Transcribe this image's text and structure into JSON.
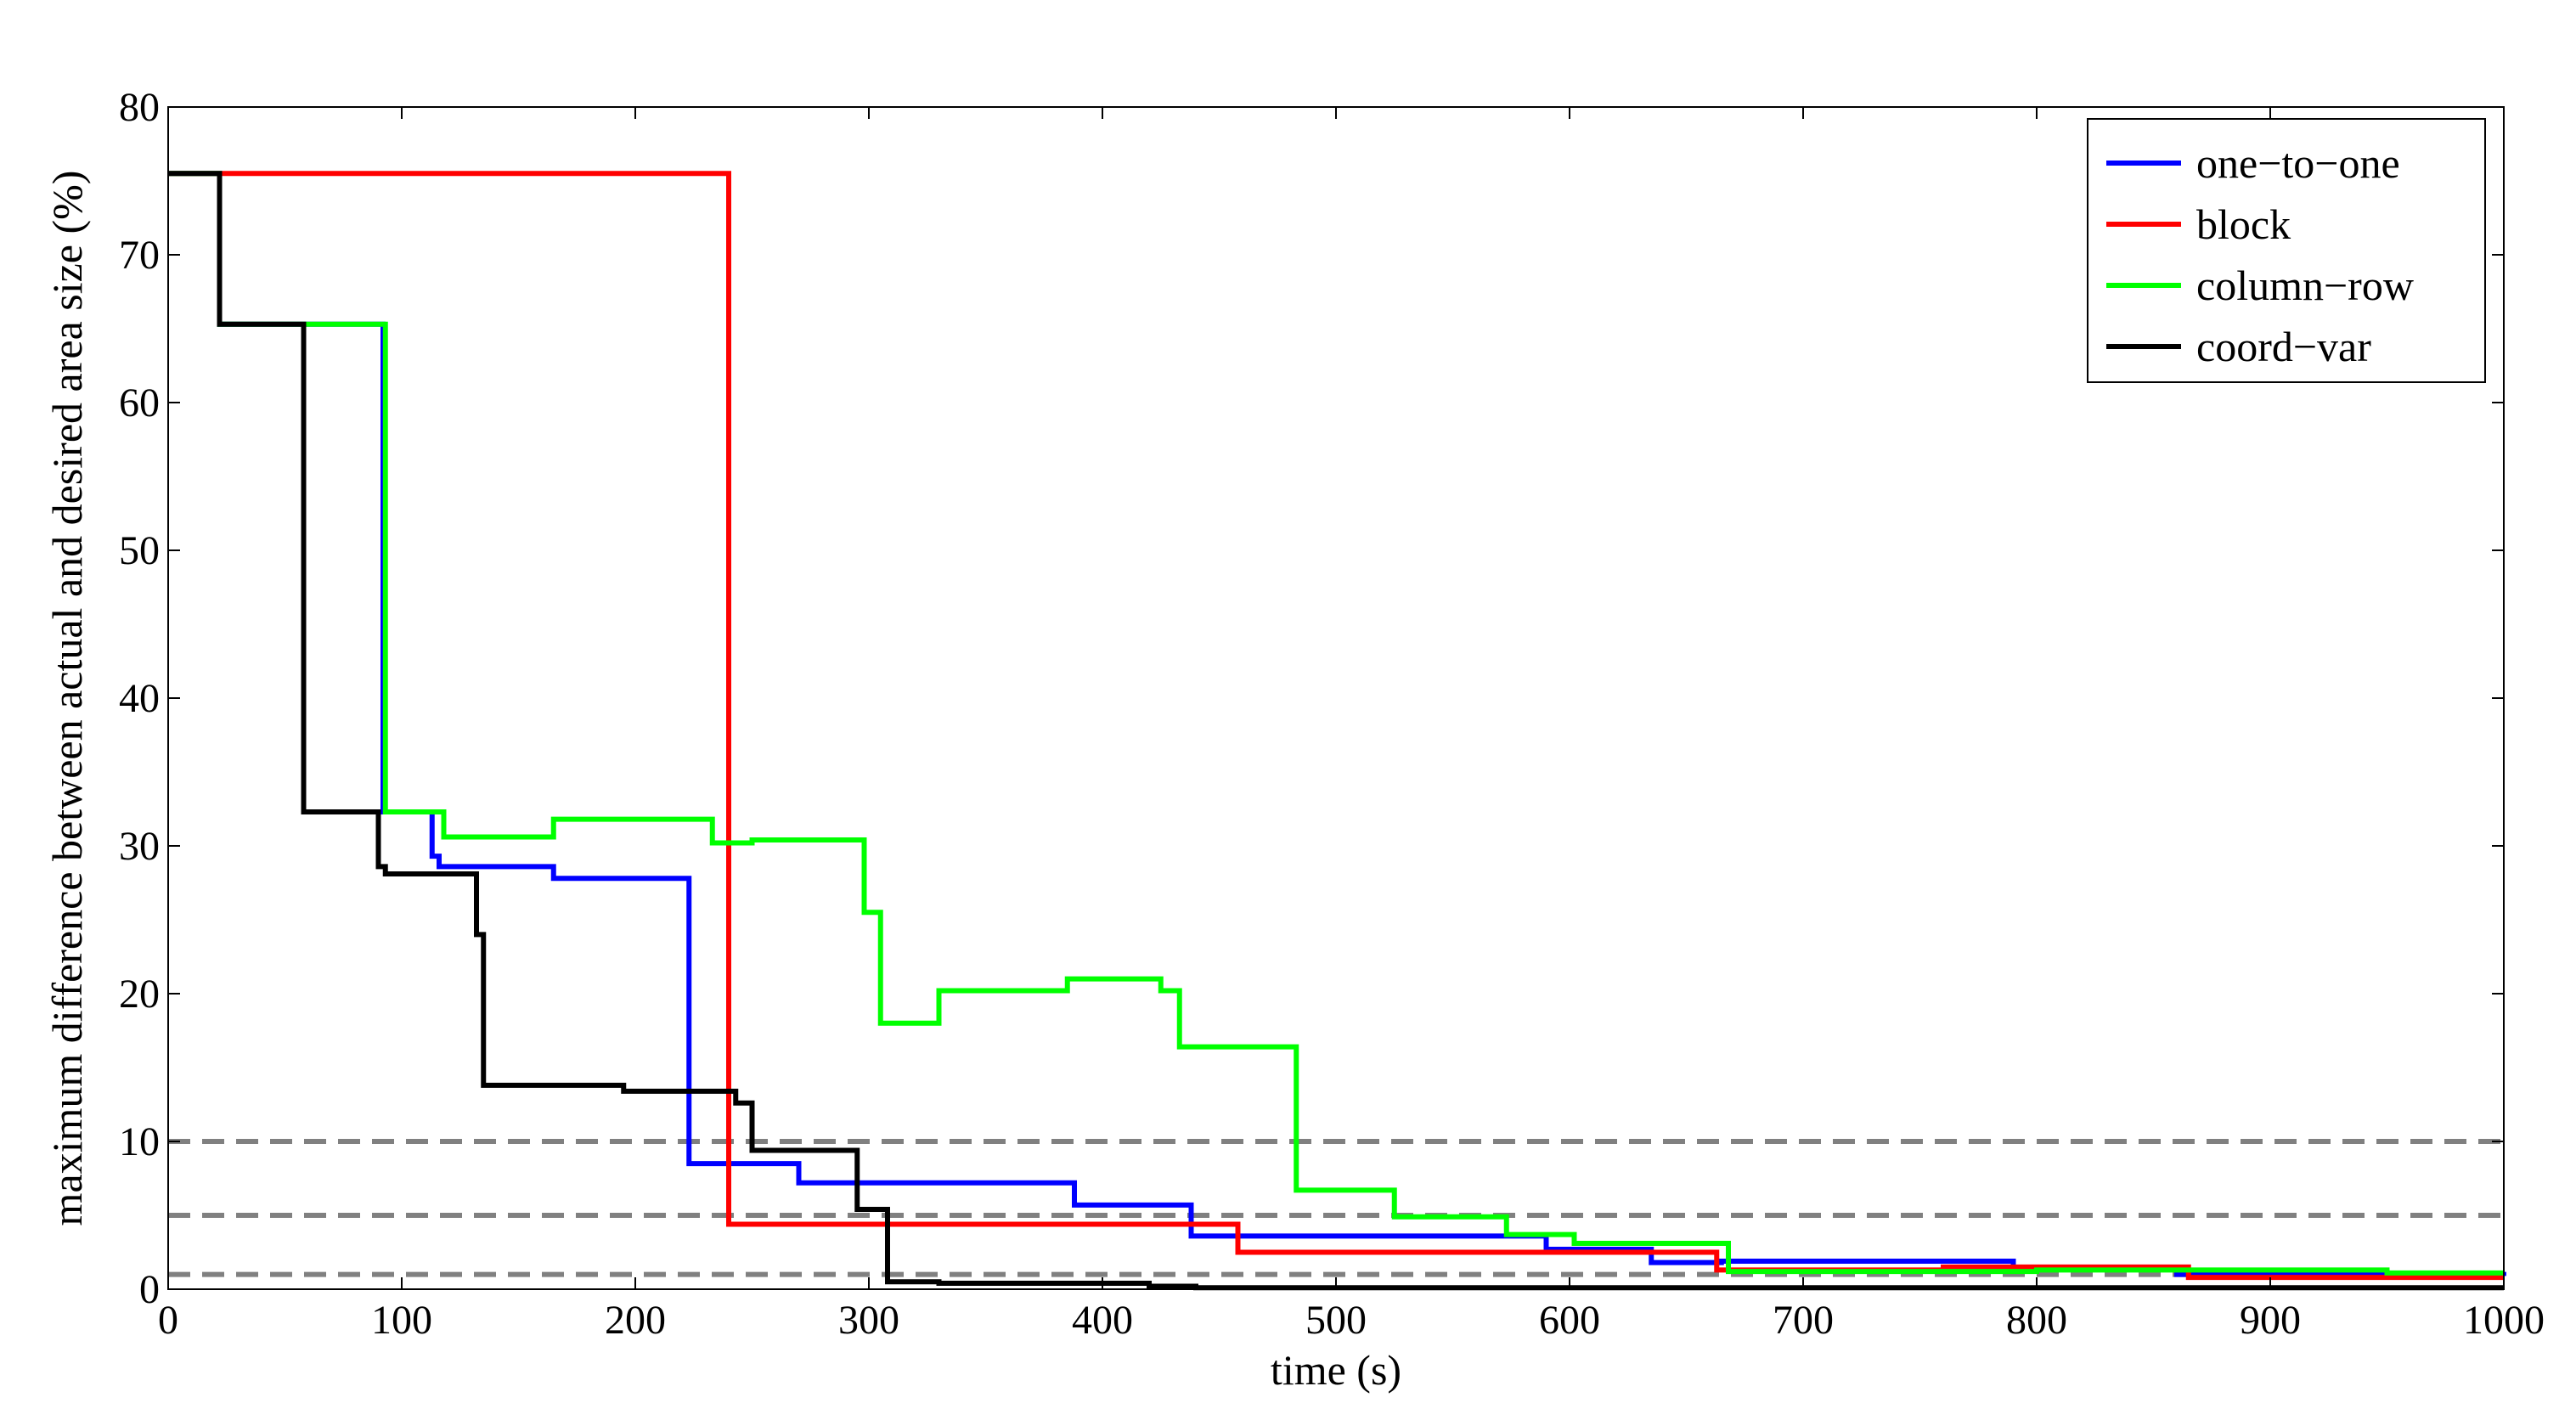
{
  "chart_data": {
    "type": "line",
    "xlabel": "time (s)",
    "ylabel": "maximum difference between actual and desired area size (%)",
    "xlim": [
      0,
      1000
    ],
    "ylim": [
      0,
      80
    ],
    "xticks": [
      "0",
      "100",
      "200",
      "300",
      "400",
      "500",
      "600",
      "700",
      "800",
      "900",
      "1000"
    ],
    "yticks": [
      "0",
      "10",
      "20",
      "30",
      "40",
      "50",
      "60",
      "70",
      "80"
    ],
    "grid": false,
    "legend_position": "top-right",
    "reference_lines": [
      {
        "y": 10,
        "style": "dashed",
        "color": "#808080"
      },
      {
        "y": 5,
        "style": "dashed",
        "color": "#808080"
      },
      {
        "y": 1,
        "style": "dashed",
        "color": "#808080"
      }
    ],
    "series": [
      {
        "name": "one−to−one",
        "color": "#0000ff",
        "step": true,
        "x": [
          0,
          22,
          56,
          92,
          113,
          116,
          165,
          223,
          226,
          270,
          388,
          438,
          590,
          635,
          665,
          790,
          860,
          1000
        ],
        "y": [
          75.5,
          65.3,
          65.3,
          32.3,
          29.3,
          28.6,
          27.8,
          8.5,
          8.5,
          7.2,
          5.7,
          3.6,
          2.7,
          1.8,
          1.9,
          1.4,
          1.0,
          0.9
        ]
      },
      {
        "name": "block",
        "color": "#ff0000",
        "step": true,
        "x": [
          0,
          240,
          458,
          663,
          760,
          865,
          1000
        ],
        "y": [
          75.5,
          4.4,
          2.5,
          1.3,
          1.5,
          0.8,
          0.8
        ]
      },
      {
        "name": "column−row",
        "color": "#00ff00",
        "step": true,
        "x": [
          0,
          22,
          93,
          118,
          165,
          233,
          250,
          298,
          305,
          330,
          385,
          425,
          433,
          483,
          525,
          573,
          602,
          668,
          800,
          950,
          1000
        ],
        "y": [
          75.5,
          65.3,
          32.3,
          30.6,
          31.8,
          30.2,
          30.4,
          25.5,
          18.0,
          20.2,
          21.0,
          20.2,
          16.4,
          6.7,
          4.9,
          3.7,
          3.1,
          1.2,
          1.3,
          1.1,
          1.1
        ]
      },
      {
        "name": "coord−var",
        "color": "#000000",
        "step": true,
        "x": [
          0,
          22,
          58,
          90,
          93,
          132,
          135,
          195,
          243,
          250,
          295,
          308,
          330,
          420,
          440,
          1000
        ],
        "y": [
          75.5,
          65.3,
          32.3,
          28.6,
          28.1,
          24.0,
          13.8,
          13.4,
          12.6,
          9.4,
          5.4,
          0.5,
          0.4,
          0.2,
          0.1,
          0.1
        ]
      }
    ]
  }
}
